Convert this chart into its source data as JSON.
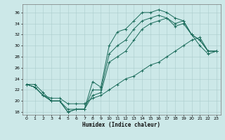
{
  "xlabel": "Humidex (Indice chaleur)",
  "background_color": "#cce8e8",
  "line_color": "#1a6b5a",
  "grid_color": "#aacccc",
  "xlim": [
    -0.5,
    23.5
  ],
  "ylim": [
    17.5,
    37.5
  ],
  "xticks": [
    0,
    1,
    2,
    3,
    4,
    5,
    6,
    7,
    8,
    9,
    10,
    11,
    12,
    13,
    14,
    15,
    16,
    17,
    18,
    19,
    20,
    21,
    22,
    23
  ],
  "yticks": [
    18,
    20,
    22,
    24,
    26,
    28,
    30,
    32,
    34,
    36
  ],
  "series": {
    "line1_top": {
      "x": [
        0,
        1,
        2,
        3,
        4,
        5,
        6,
        7,
        8,
        9,
        10,
        11,
        12,
        13,
        14,
        15,
        16,
        17,
        18,
        19,
        20,
        21,
        22,
        23
      ],
      "y": [
        23,
        23,
        21.5,
        20,
        20,
        18,
        18.5,
        18.5,
        23.5,
        22.5,
        30,
        32.5,
        33,
        34.5,
        36,
        36,
        36.5,
        36,
        35,
        34.5,
        32,
        31,
        29,
        29
      ]
    },
    "line2_mid": {
      "x": [
        0,
        1,
        2,
        3,
        4,
        5,
        6,
        7,
        8,
        9,
        10,
        11,
        12,
        13,
        14,
        15,
        16,
        17,
        18,
        19,
        20,
        21,
        22,
        23
      ],
      "y": [
        23,
        22.5,
        21,
        20,
        20,
        18.5,
        18.5,
        18.5,
        22,
        22,
        28.5,
        30,
        31,
        33,
        34.5,
        35,
        35.5,
        35,
        34,
        34.5,
        32,
        31,
        29,
        29
      ]
    },
    "line3_low": {
      "x": [
        0,
        1,
        2,
        3,
        4,
        5,
        6,
        7,
        8,
        9,
        10,
        11,
        12,
        13,
        14,
        15,
        16,
        17,
        18,
        19,
        20,
        21,
        22,
        23
      ],
      "y": [
        23,
        22.5,
        21,
        20,
        20,
        18,
        18.5,
        18.5,
        21,
        21.5,
        27,
        28,
        29,
        31,
        33,
        34,
        34.5,
        35,
        33.5,
        34,
        32,
        30,
        28.5,
        29
      ]
    },
    "line4_diag": {
      "x": [
        0,
        1,
        2,
        3,
        4,
        5,
        6,
        7,
        8,
        9,
        10,
        11,
        12,
        13,
        14,
        15,
        16,
        17,
        18,
        19,
        20,
        21,
        22,
        23
      ],
      "y": [
        23,
        22.5,
        21,
        20.5,
        20.5,
        19.5,
        19.5,
        19.5,
        20.5,
        21,
        22,
        23,
        24,
        24.5,
        25.5,
        26.5,
        27,
        28,
        29,
        30,
        31,
        31.5,
        29,
        29
      ]
    }
  }
}
